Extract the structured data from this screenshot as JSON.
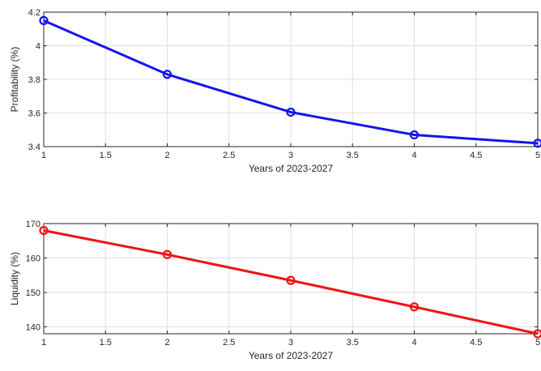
{
  "chart_data": [
    {
      "type": "line",
      "xlabel": "Years of 2023-2027",
      "ylabel": "Profitability (%)",
      "xlim": [
        1,
        5
      ],
      "ylim": [
        3.4,
        4.2
      ],
      "xticks": [
        "1",
        "1.5",
        "2",
        "2.5",
        "3",
        "3.5",
        "4",
        "4.5",
        "5"
      ],
      "yticks": [
        "3.4",
        "3.6",
        "3.8",
        "4",
        "4.2"
      ],
      "grid": true,
      "series": [
        {
          "color": "#1414f0",
          "x": [
            1,
            2,
            3,
            4,
            5
          ],
          "values": [
            4.15,
            3.83,
            3.605,
            3.47,
            3.42
          ]
        }
      ]
    },
    {
      "type": "line",
      "xlabel": "Years of 2023-2027",
      "ylabel": "Liquidity (%)",
      "xlim": [
        1,
        5
      ],
      "ylim": [
        138,
        170
      ],
      "xticks": [
        "1",
        "1.5",
        "2",
        "2.5",
        "3",
        "3.5",
        "4",
        "4.5",
        "5"
      ],
      "yticks": [
        "140",
        "150",
        "160",
        "170"
      ],
      "grid": true,
      "series": [
        {
          "color": "#f01414",
          "x": [
            1,
            2,
            3,
            4,
            5
          ],
          "values": [
            168,
            161,
            153.5,
            145.8,
            138
          ]
        }
      ]
    }
  ]
}
